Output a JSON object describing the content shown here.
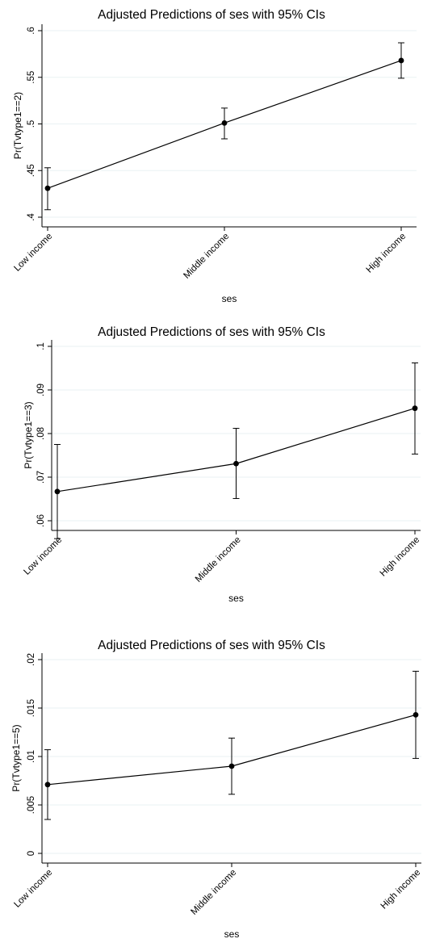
{
  "chart_data": [
    {
      "type": "line",
      "title": "Adjusted Predictions of ses with 95% CIs",
      "xlabel": "ses",
      "ylabel": "Pr(Tvtype1==2)",
      "categories": [
        "Low income",
        "Middle income",
        "High income"
      ],
      "yticks": [
        ".4",
        ".45",
        ".5",
        ".55",
        ".6"
      ],
      "ytick_values": [
        0.4,
        0.45,
        0.5,
        0.55,
        0.6
      ],
      "ylim": [
        0.4,
        0.6
      ],
      "grid": true,
      "series": [
        {
          "values": [
            0.431,
            0.501,
            0.568
          ],
          "ci_lower": [
            0.408,
            0.484,
            0.549
          ],
          "ci_upper": [
            0.453,
            0.517,
            0.587
          ]
        }
      ]
    },
    {
      "type": "line",
      "title": "Adjusted Predictions of ses with 95% CIs",
      "xlabel": "ses",
      "ylabel": "Pr(Tvtype1==3)",
      "categories": [
        "Low income",
        "Middle income",
        "High income"
      ],
      "yticks": [
        ".06",
        ".07",
        ".08",
        ".09",
        ".1"
      ],
      "ytick_values": [
        0.06,
        0.07,
        0.08,
        0.09,
        0.1
      ],
      "ylim": [
        0.06,
        0.1
      ],
      "grid": true,
      "series": [
        {
          "values": [
            0.0667,
            0.0731,
            0.0858
          ],
          "ci_lower": [
            0.0559,
            0.0651,
            0.0753
          ],
          "ci_upper": [
            0.0775,
            0.0812,
            0.0962
          ]
        }
      ]
    },
    {
      "type": "line",
      "title": "Adjusted Predictions of ses with 95% CIs",
      "xlabel": "ses",
      "ylabel": "Pr(Tvtype1==5)",
      "categories": [
        "Low income",
        "Middle income",
        "High income"
      ],
      "yticks": [
        "0",
        ".005",
        ".01",
        ".015",
        ".02"
      ],
      "ytick_values": [
        0,
        0.005,
        0.01,
        0.015,
        0.02
      ],
      "ylim": [
        0,
        0.02
      ],
      "grid": true,
      "series": [
        {
          "values": [
            0.0071,
            0.009,
            0.0143
          ],
          "ci_lower": [
            0.0035,
            0.0061,
            0.0098
          ],
          "ci_upper": [
            0.0107,
            0.0119,
            0.0188
          ]
        }
      ]
    }
  ]
}
